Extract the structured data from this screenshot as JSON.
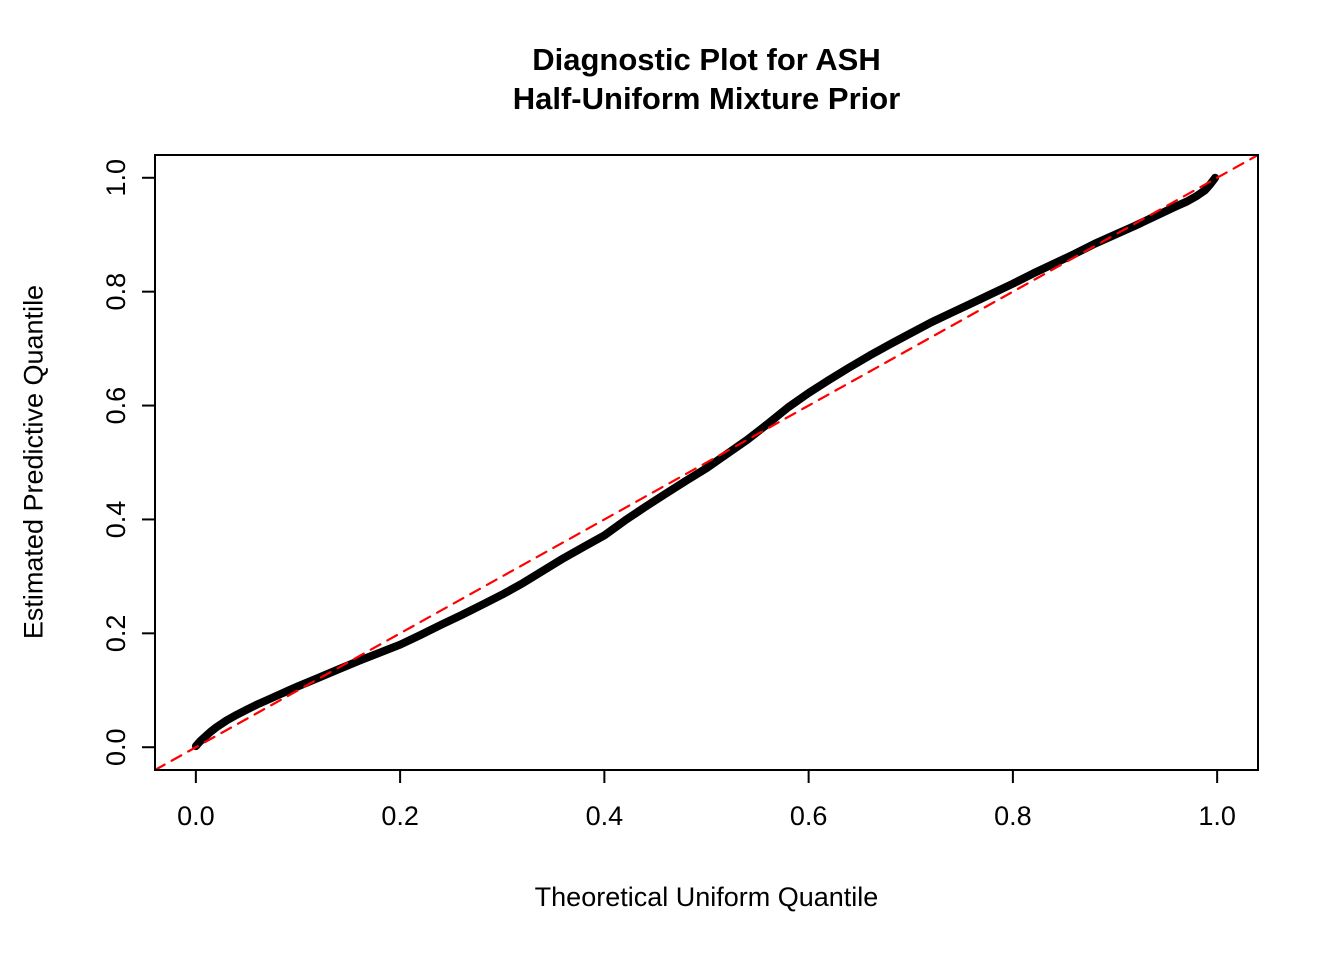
{
  "title": {
    "line1": "Diagnostic Plot for ASH",
    "line2": "Half-Uniform Mixture Prior"
  },
  "chart_data": {
    "type": "line",
    "title": "Diagnostic Plot for ASH\nHalf-Uniform Mixture Prior",
    "xlabel": "Theoretical Uniform Quantile",
    "ylabel": "Estimated Predictive Quantile",
    "xlim": [
      -0.04,
      1.04
    ],
    "ylim": [
      -0.04,
      1.04
    ],
    "grid": false,
    "legend": "none",
    "xticks": [
      0.0,
      0.2,
      0.4,
      0.6,
      0.8,
      1.0
    ],
    "yticks": [
      0.0,
      0.2,
      0.4,
      0.6,
      0.8,
      1.0
    ],
    "xtick_labels": [
      "0.0",
      "0.2",
      "0.4",
      "0.6",
      "0.8",
      "1.0"
    ],
    "ytick_labels": [
      "0.0",
      "0.2",
      "0.4",
      "0.6",
      "0.8",
      "1.0"
    ],
    "series": [
      {
        "name": "estimated-predictive-quantiles",
        "color": "#000000",
        "style": "thick-solid",
        "stroke_width": 8,
        "points": [
          [
            0.0,
            0.002
          ],
          [
            0.004,
            0.01
          ],
          [
            0.01,
            0.02
          ],
          [
            0.015,
            0.028
          ],
          [
            0.02,
            0.035
          ],
          [
            0.03,
            0.047
          ],
          [
            0.04,
            0.057
          ],
          [
            0.05,
            0.066
          ],
          [
            0.06,
            0.075
          ],
          [
            0.07,
            0.083
          ],
          [
            0.08,
            0.091
          ],
          [
            0.09,
            0.099
          ],
          [
            0.1,
            0.107
          ],
          [
            0.12,
            0.122
          ],
          [
            0.14,
            0.137
          ],
          [
            0.16,
            0.152
          ],
          [
            0.18,
            0.166
          ],
          [
            0.2,
            0.18
          ],
          [
            0.22,
            0.197
          ],
          [
            0.24,
            0.215
          ],
          [
            0.26,
            0.232
          ],
          [
            0.28,
            0.25
          ],
          [
            0.3,
            0.268
          ],
          [
            0.32,
            0.288
          ],
          [
            0.34,
            0.31
          ],
          [
            0.36,
            0.332
          ],
          [
            0.38,
            0.352
          ],
          [
            0.4,
            0.372
          ],
          [
            0.42,
            0.398
          ],
          [
            0.44,
            0.422
          ],
          [
            0.46,
            0.445
          ],
          [
            0.48,
            0.468
          ],
          [
            0.5,
            0.49
          ],
          [
            0.52,
            0.515
          ],
          [
            0.54,
            0.54
          ],
          [
            0.56,
            0.568
          ],
          [
            0.58,
            0.597
          ],
          [
            0.6,
            0.622
          ],
          [
            0.62,
            0.645
          ],
          [
            0.64,
            0.667
          ],
          [
            0.66,
            0.688
          ],
          [
            0.68,
            0.708
          ],
          [
            0.7,
            0.727
          ],
          [
            0.72,
            0.746
          ],
          [
            0.74,
            0.763
          ],
          [
            0.76,
            0.78
          ],
          [
            0.78,
            0.797
          ],
          [
            0.8,
            0.814
          ],
          [
            0.82,
            0.832
          ],
          [
            0.84,
            0.849
          ],
          [
            0.86,
            0.866
          ],
          [
            0.88,
            0.884
          ],
          [
            0.9,
            0.9
          ],
          [
            0.92,
            0.916
          ],
          [
            0.94,
            0.933
          ],
          [
            0.96,
            0.95
          ],
          [
            0.97,
            0.958
          ],
          [
            0.98,
            0.968
          ],
          [
            0.988,
            0.978
          ],
          [
            0.993,
            0.988
          ],
          [
            0.996,
            0.995
          ],
          [
            0.998,
            1.0
          ]
        ]
      },
      {
        "name": "reference-diagonal",
        "color": "#ff0000",
        "style": "dashed",
        "stroke_width": 2.2,
        "points": [
          [
            -0.04,
            -0.04
          ],
          [
            1.04,
            1.04
          ]
        ]
      }
    ]
  }
}
